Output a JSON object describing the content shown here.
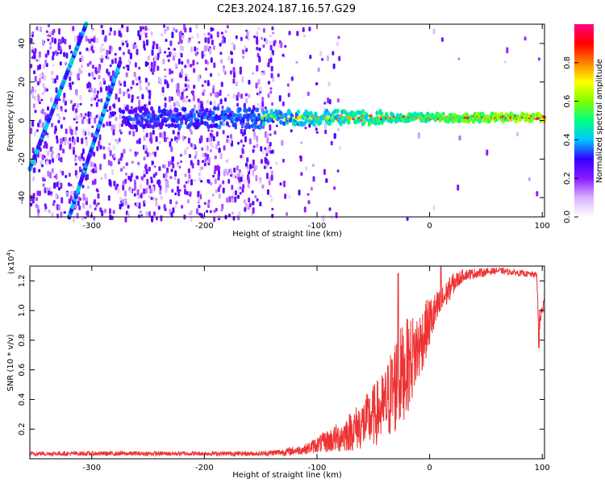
{
  "title": "C2E3.2024.187.16.57.G29",
  "chart_data": [
    {
      "type": "heatmap",
      "xlabel": "Height of straight line (km)",
      "ylabel": "Frequency (Hz)",
      "xlim": [
        -355,
        102
      ],
      "ylim": [
        -50,
        50
      ],
      "xticks": [
        -300,
        -200,
        -100,
        0,
        100
      ],
      "yticks": [
        -40,
        -20,
        0,
        20,
        40
      ],
      "colorbar": {
        "label": "Normalized spectral amplitude",
        "range": [
          0,
          1
        ],
        "ticks": [
          "0.0",
          "0.2",
          "0.4",
          "0.6",
          "0.8"
        ],
        "colors": [
          "#ffffff",
          "#d9b3ff",
          "#8c1aff",
          "#3300ff",
          "#00c8ff",
          "#00ff80",
          "#80ff00",
          "#ffff00",
          "#ff8000",
          "#ff0000",
          "#ff0080"
        ]
      },
      "features": {
        "carrier_band": {
          "x_start": -272,
          "x_end": 102,
          "freq_hz": 1.5,
          "amplitude_start": 0.3,
          "amplitude_end": 0.9
        },
        "diagonal_traces": [
          {
            "x": [
              -355,
              -305
            ],
            "freq_hz": [
              -25,
              50
            ]
          },
          {
            "x": [
              -320,
              -275
            ],
            "freq_hz": [
              -50,
              30
            ]
          }
        ],
        "noise_region": {
          "x_start": -355,
          "x_end": -140
        }
      },
      "grid": false
    },
    {
      "type": "line",
      "xlabel": "Height of straight line (km)",
      "ylabel": "SNR (10 * v/v)",
      "scale_label": "(x10",
      "scale_exp": "4",
      "xlim": [
        -355,
        102
      ],
      "ylim": [
        0,
        1.3
      ],
      "xticks": [
        -300,
        -200,
        -100,
        0,
        100
      ],
      "yticks": [
        "0.2",
        "0.4",
        "0.6",
        "0.8",
        "1.0",
        "1.2"
      ],
      "color": "#ee3333",
      "envelope": {
        "x": [
          -355,
          -250,
          -150,
          -130,
          -110,
          -100,
          -80,
          -60,
          -40,
          -30,
          -20,
          -10,
          0,
          10,
          20,
          30,
          60,
          95,
          97,
          102
        ],
        "y_low": [
          0.02,
          0.02,
          0.02,
          0.02,
          0.03,
          0.04,
          0.04,
          0.06,
          0.1,
          0.16,
          0.3,
          0.5,
          0.75,
          0.95,
          1.1,
          1.2,
          1.25,
          1.22,
          0.8,
          1.05
        ],
        "y_high": [
          0.05,
          0.05,
          0.05,
          0.07,
          0.1,
          0.15,
          0.25,
          0.4,
          0.6,
          0.85,
          0.95,
          1.0,
          1.1,
          1.15,
          1.25,
          1.28,
          1.29,
          1.26,
          1.0,
          1.1
        ]
      },
      "spikes": [
        {
          "x": -28,
          "y": 1.25
        },
        {
          "x": 10,
          "y": 1.3
        },
        {
          "x": 97,
          "y": 0.75
        }
      ],
      "grid": false
    }
  ]
}
